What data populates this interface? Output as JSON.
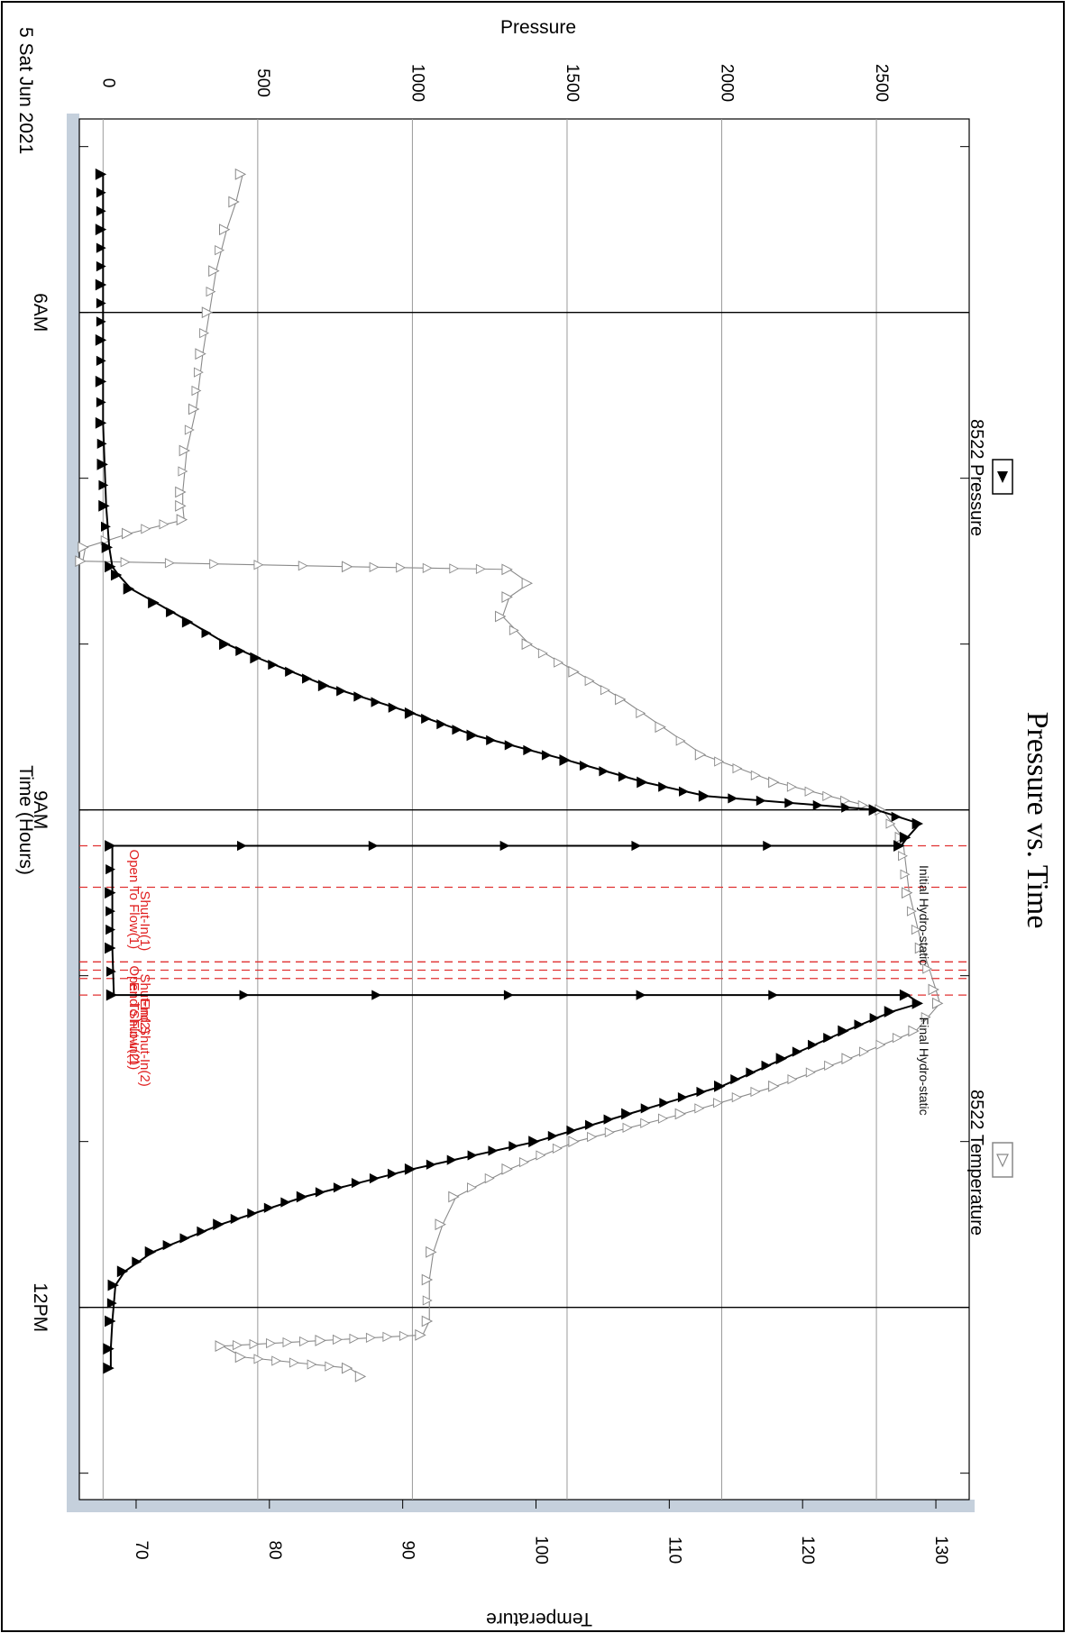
{
  "chart_data": {
    "type": "line",
    "title": "Pressure vs. Time",
    "xlabel": "Time (Hours)",
    "date_label": "5 Sat Jun 2021",
    "y_left_label": "Pressure",
    "y_right_label": "Temperature",
    "x_ticks": [
      {
        "t": "06:00",
        "label": "6AM"
      },
      {
        "t": "09:00",
        "label": "9AM"
      },
      {
        "t": "12:00",
        "label": "12PM"
      }
    ],
    "x_range": [
      "04:50",
      "13:05"
    ],
    "pressure_ticks": [
      0,
      500,
      1000,
      1500,
      2000,
      2500
    ],
    "pressure_tick_labels": [
      "0",
      "500",
      "1000",
      "1500",
      "2000",
      "2500"
    ],
    "pressure_range": [
      -100,
      2800
    ],
    "temperature_ticks": [
      70,
      80,
      90,
      100,
      110,
      120,
      130
    ],
    "temperature_range": [
      65.2,
      132.5
    ],
    "grid": true,
    "legend_placement": "right",
    "series": [
      {
        "name": "8522 Pressure",
        "axis": "pressure",
        "marker": "filled-triangle",
        "color": "#000000",
        "points": [
          [
            "05:10",
            0
          ],
          [
            "05:30",
            0
          ],
          [
            "05:50",
            0
          ],
          [
            "06:10",
            0
          ],
          [
            "06:25",
            0
          ],
          [
            "06:40",
            0
          ],
          [
            "06:55",
            5
          ],
          [
            "07:10",
            10
          ],
          [
            "07:25",
            20
          ],
          [
            "07:32",
            30
          ],
          [
            "07:35",
            50
          ],
          [
            "07:40",
            90
          ],
          [
            "07:45",
            170
          ],
          [
            "07:52",
            280
          ],
          [
            "08:00",
            400
          ],
          [
            "08:05",
            500
          ],
          [
            "08:15",
            720
          ],
          [
            "08:25",
            1000
          ],
          [
            "08:33",
            1200
          ],
          [
            "08:42",
            1500
          ],
          [
            "08:50",
            1750
          ],
          [
            "08:55",
            1950
          ],
          [
            "09:00",
            2500
          ],
          [
            "09:05",
            2640
          ],
          [
            "09:10",
            2600
          ],
          [
            "09:13",
            2580
          ],
          [
            "09:13",
            30
          ],
          [
            "09:30",
            30
          ],
          [
            "09:50",
            30
          ],
          [
            "10:07",
            35
          ],
          [
            "10:07",
            2600
          ],
          [
            "10:10",
            2640
          ],
          [
            "10:13",
            2550
          ],
          [
            "10:20",
            2400
          ],
          [
            "10:30",
            2200
          ],
          [
            "10:40",
            2000
          ],
          [
            "10:50",
            1700
          ],
          [
            "11:00",
            1400
          ],
          [
            "11:10",
            1000
          ],
          [
            "11:20",
            650
          ],
          [
            "11:30",
            380
          ],
          [
            "11:40",
            160
          ],
          [
            "11:47",
            70
          ],
          [
            "11:52",
            40
          ],
          [
            "12:05",
            30
          ],
          [
            "12:15",
            25
          ],
          [
            "12:22",
            25
          ]
        ]
      },
      {
        "name": "8522 Temperature",
        "axis": "temperature",
        "marker": "open-triangle",
        "color": "#8a8a8a",
        "points": [
          [
            "05:10",
            78.0
          ],
          [
            "05:20",
            77.5
          ],
          [
            "05:30",
            76.8
          ],
          [
            "05:45",
            76.0
          ],
          [
            "06:00",
            75.5
          ],
          [
            "06:15",
            75.0
          ],
          [
            "06:35",
            74.5
          ],
          [
            "06:50",
            73.8
          ],
          [
            "07:05",
            73.5
          ],
          [
            "07:10",
            73.5
          ],
          [
            "07:15",
            73.6
          ],
          [
            "07:20",
            69.5
          ],
          [
            "07:25",
            66.2
          ],
          [
            "07:30",
            66.0
          ],
          [
            "07:32",
            86.0
          ],
          [
            "07:33",
            98.0
          ],
          [
            "07:38",
            99.5
          ],
          [
            "07:43",
            98.0
          ],
          [
            "07:50",
            97.5
          ],
          [
            "08:00",
            99.5
          ],
          [
            "08:10",
            103.0
          ],
          [
            "08:20",
            106.5
          ],
          [
            "08:30",
            109.5
          ],
          [
            "08:40",
            112.5
          ],
          [
            "08:50",
            118.0
          ],
          [
            "09:00",
            126.0
          ],
          [
            "09:10",
            127.5
          ],
          [
            "09:30",
            128.0
          ],
          [
            "09:50",
            129.0
          ],
          [
            "10:05",
            130.0
          ],
          [
            "10:10",
            130.3
          ],
          [
            "10:20",
            128.5
          ],
          [
            "10:30",
            123.5
          ],
          [
            "10:40",
            118.0
          ],
          [
            "10:50",
            111.0
          ],
          [
            "11:00",
            103.0
          ],
          [
            "11:10",
            98.0
          ],
          [
            "11:20",
            94.0
          ],
          [
            "11:30",
            93.0
          ],
          [
            "11:40",
            92.3
          ],
          [
            "11:50",
            92.0
          ],
          [
            "12:05",
            92.0
          ],
          [
            "12:10",
            91.5
          ],
          [
            "12:12",
            84.0
          ],
          [
            "12:14",
            76.5
          ],
          [
            "12:18",
            78.0
          ],
          [
            "12:22",
            86.0
          ],
          [
            "12:25",
            87.0
          ]
        ]
      }
    ],
    "events": [
      {
        "t": "09:13",
        "label": "Open To Flow(1)"
      },
      {
        "t": "09:28",
        "label": "Shut-In(1)"
      },
      {
        "t": "09:55",
        "label": "Open To Flow(2)"
      },
      {
        "t": "09:58",
        "label": "Shut-In(2)"
      },
      {
        "t": "10:01",
        "label": "End Shut-In(1)"
      },
      {
        "t": "10:07",
        "label": "End Shut-In(2)"
      }
    ],
    "annotations": [
      {
        "t": "09:20",
        "text": "Initial Hydro-static"
      },
      {
        "t": "10:15",
        "text": "Final Hydro-static"
      }
    ]
  }
}
